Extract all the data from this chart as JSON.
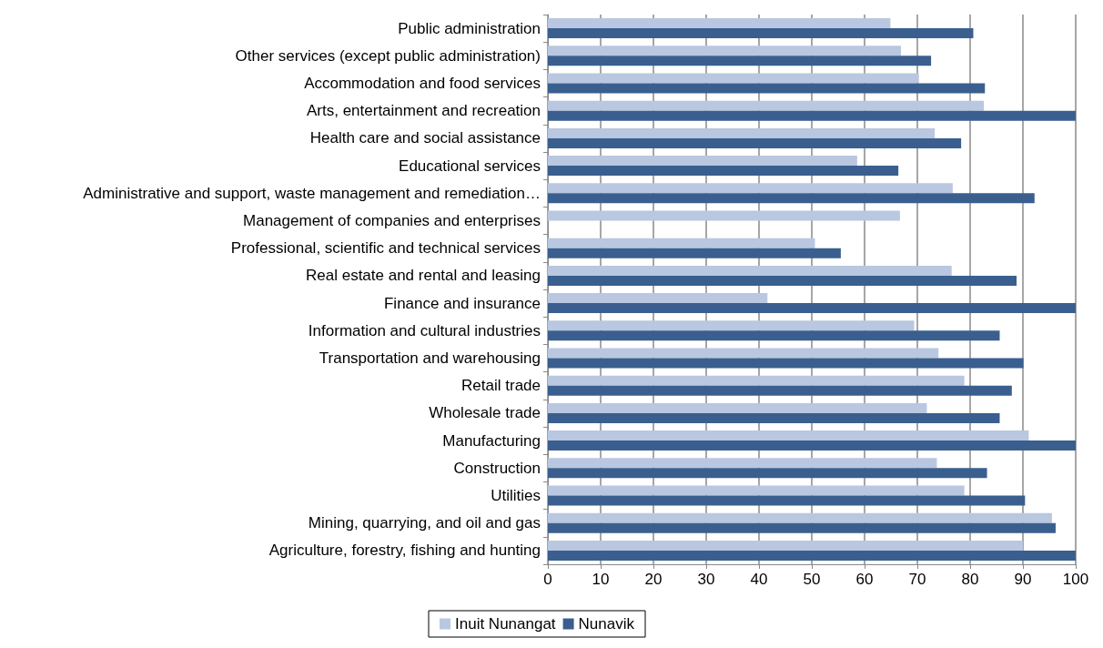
{
  "chart_data": {
    "type": "bar",
    "orientation": "horizontal",
    "categories": [
      "Public administration",
      "Other services (except public administration)",
      "Accommodation and food services",
      "Arts, entertainment and recreation",
      "Health care and social assistance",
      "Educational services",
      "Administrative and support, waste management and remediation…",
      "Management of companies and enterprises",
      "Professional, scientific and technical services",
      "Real estate and rental and leasing",
      "Finance and insurance",
      "Information and cultural industries",
      "Transportation and warehousing",
      "Retail trade",
      "Wholesale trade",
      "Manufacturing",
      "Construction",
      "Utilities",
      "Mining, quarrying, and oil and gas",
      "Agriculture, forestry, fishing and hunting"
    ],
    "series": [
      {
        "name": "Inuit Nunangat",
        "color": "#b9c7e0",
        "values": [
          64.9,
          66.9,
          70.3,
          82.6,
          73.3,
          58.6,
          76.7,
          66.7,
          50.6,
          76.5,
          41.6,
          69.4,
          74.0,
          78.9,
          71.8,
          91.1,
          73.7,
          78.9,
          95.5,
          90.0
        ]
      },
      {
        "name": "Nunavik",
        "color": "#3a5f8f",
        "values": [
          80.6,
          72.6,
          82.8,
          100,
          78.3,
          66.4,
          92.2,
          null,
          55.5,
          88.8,
          100,
          85.6,
          90.1,
          87.9,
          85.6,
          100,
          83.2,
          90.4,
          96.2,
          100
        ]
      }
    ],
    "xlim": [
      0,
      100
    ],
    "xticks": [
      0,
      10,
      20,
      30,
      40,
      50,
      60,
      70,
      80,
      90,
      100
    ],
    "grid": "x",
    "legend": "bottom"
  }
}
